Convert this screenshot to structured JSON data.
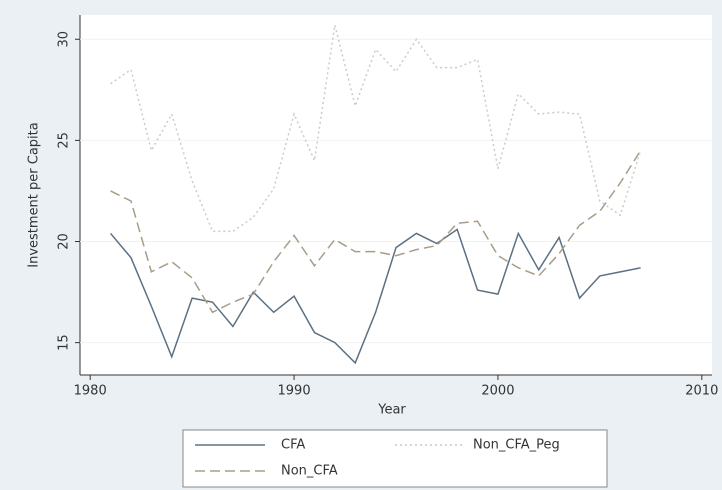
{
  "chart_data": {
    "type": "line",
    "x_label": "Year",
    "y_label": "Investment per Capita",
    "x": [
      1981,
      1982,
      1983,
      1984,
      1985,
      1986,
      1987,
      1988,
      1989,
      1990,
      1991,
      1992,
      1993,
      1994,
      1995,
      1996,
      1997,
      1998,
      1999,
      2000,
      2001,
      2002,
      2003,
      2004,
      2005,
      2006,
      2007
    ],
    "series": [
      {
        "name": "CFA",
        "color": "#5b7083",
        "dash": "none",
        "values": [
          20.4,
          19.2,
          16.8,
          14.3,
          17.2,
          17.0,
          15.8,
          17.5,
          16.5,
          17.3,
          15.5,
          15.0,
          14.0,
          16.5,
          19.7,
          20.4,
          19.9,
          20.6,
          17.6,
          17.4,
          20.4,
          18.6,
          20.2,
          17.2,
          18.3,
          18.5,
          18.7
        ]
      },
      {
        "name": "Non_CFA",
        "color": "#a89d8a",
        "dash": "10 5",
        "values": [
          22.5,
          22.0,
          18.5,
          19.0,
          18.2,
          16.5,
          17.0,
          17.4,
          19.0,
          20.3,
          18.8,
          20.1,
          19.5,
          19.5,
          19.3,
          19.6,
          19.8,
          20.9,
          21.0,
          19.3,
          18.7,
          18.3,
          19.4,
          20.8,
          21.5,
          22.9,
          24.5
        ]
      },
      {
        "name": "Non_CFA_Peg",
        "color": "#c9cbcc",
        "dash": "2 3",
        "values": [
          27.8,
          28.5,
          24.5,
          26.3,
          23.0,
          20.5,
          20.5,
          21.2,
          22.6,
          26.3,
          24.0,
          30.7,
          26.7,
          29.5,
          28.4,
          30.0,
          28.6,
          28.6,
          29.0,
          23.6,
          27.3,
          26.3,
          26.4,
          26.3,
          22.0,
          21.3,
          24.5
        ]
      }
    ],
    "xlim": [
      1979.5,
      2010.5
    ],
    "xticks": [
      1980,
      1990,
      2000,
      2010
    ],
    "ylim": [
      13.4,
      31.2
    ],
    "yticks": [
      15,
      20,
      25,
      30
    ],
    "grid": true,
    "legend": "bottom"
  }
}
